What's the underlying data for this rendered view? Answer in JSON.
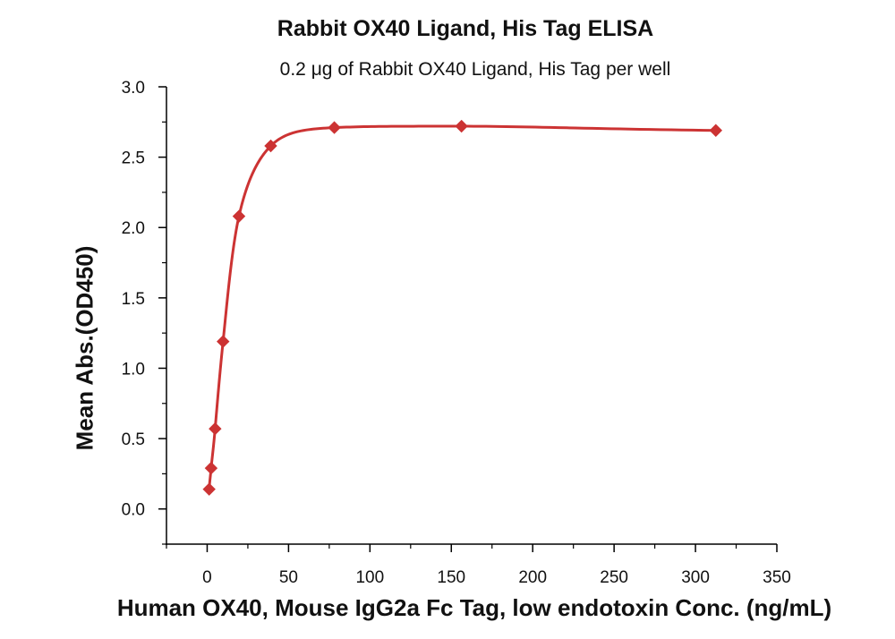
{
  "chart_data": {
    "type": "scatter",
    "title": "Rabbit OX40 Ligand, His Tag ELISA",
    "subtitle": "0.2 μg of Rabbit OX40 Ligand, His Tag per well",
    "xlabel": "Human OX40, Mouse IgG2a Fc Tag, low endotoxin  Conc. (ng/mL)",
    "ylabel": "Mean Abs.(OD450)",
    "xlim": [
      -25,
      350
    ],
    "ylim": [
      -0.25,
      3.0
    ],
    "x_ticks": [
      "0",
      "50",
      "100",
      "150",
      "200",
      "250",
      "300",
      "350"
    ],
    "y_ticks": [
      "0.0",
      "0.5",
      "1.0",
      "1.5",
      "2.0",
      "2.5",
      "3.0"
    ],
    "grid": false,
    "series": [
      {
        "color": "#cc3333",
        "marker": "diamond",
        "x": [
          1.22,
          2.44,
          4.88,
          9.77,
          19.53,
          39.06,
          78.13,
          156.25,
          312.5
        ],
        "y": [
          0.14,
          0.29,
          0.57,
          1.19,
          2.08,
          2.58,
          2.71,
          2.72,
          2.69
        ],
        "fit": "sigmoidal curve"
      }
    ]
  }
}
